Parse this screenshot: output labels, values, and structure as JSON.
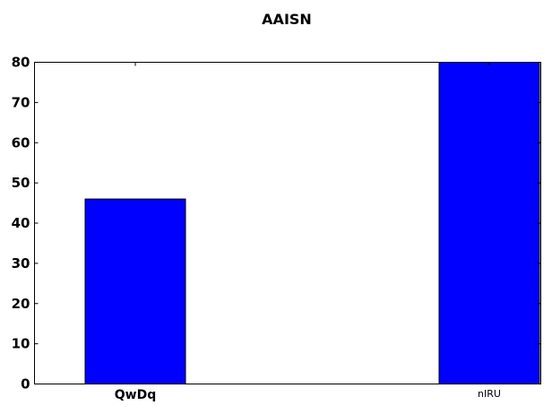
{
  "chart_data": {
    "type": "bar",
    "title": "AAISN",
    "xlabel": "",
    "ylabel": "",
    "categories": [
      "QwDq",
      "nIRU"
    ],
    "values": [
      46,
      80
    ],
    "ylim": [
      0,
      80
    ],
    "yticks": [
      "0",
      "10",
      "20",
      "30",
      "40",
      "50",
      "60",
      "70",
      "80"
    ],
    "bar_color": "#0000ff",
    "grid": false,
    "legend": "none"
  }
}
